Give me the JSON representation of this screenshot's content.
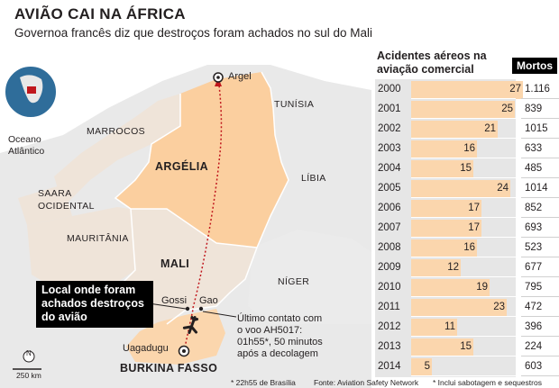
{
  "header": {
    "title": "AVIÃO CAI NA ÁFRICA",
    "subtitle": "Governoa francês diz que destroços foram achados no sul do Mali"
  },
  "map": {
    "labels": {
      "ocean": "Oceano\nAtlântico",
      "marrocos": "MARROCOS",
      "tunisia": "TUNÍSIA",
      "argelia": "ARGÉLIA",
      "libia": "LÍBIA",
      "saara": "SAARA\nOCIDENTAL",
      "mauritania": "MAURITÂNIA",
      "mali": "MALI",
      "niger": "NÍGER",
      "burkina": "BURKINA FASSO"
    },
    "cities": {
      "argel": "Argel",
      "gao": "Gao",
      "gossi": "Gossi",
      "uagadugu": "Uagadugu"
    },
    "callout": "Local onde foram achados destroços do avião",
    "last_contact": "Último contato com o voo AH5017: 01h55*, 50 minutos após a decolagem",
    "scale": "250 km",
    "north": "N",
    "colors": {
      "highlight": "#fbcf9f",
      "neighbor": "#efe4d9",
      "other": "#e8e8e8",
      "route": "#c0171d"
    }
  },
  "table": {
    "title": "Acidentes aéreos na aviação comercial",
    "deaths_header": "Mortos",
    "rows": [
      {
        "year": "2000",
        "accidents": 27,
        "deaths": "1.116"
      },
      {
        "year": "2001",
        "accidents": 25,
        "deaths": "839"
      },
      {
        "year": "2002",
        "accidents": 21,
        "deaths": "1015"
      },
      {
        "year": "2003",
        "accidents": 16,
        "deaths": "633"
      },
      {
        "year": "2004",
        "accidents": 15,
        "deaths": "485"
      },
      {
        "year": "2005",
        "accidents": 24,
        "deaths": "1014"
      },
      {
        "year": "2006",
        "accidents": 17,
        "deaths": "852"
      },
      {
        "year": "2007",
        "accidents": 17,
        "deaths": "693"
      },
      {
        "year": "2008",
        "accidents": 16,
        "deaths": "523"
      },
      {
        "year": "2009",
        "accidents": 12,
        "deaths": "677"
      },
      {
        "year": "2010",
        "accidents": 19,
        "deaths": "795"
      },
      {
        "year": "2011",
        "accidents": 23,
        "deaths": "472"
      },
      {
        "year": "2012",
        "accidents": 11,
        "deaths": "396"
      },
      {
        "year": "2013",
        "accidents": 15,
        "deaths": "224"
      },
      {
        "year": "2014",
        "accidents": 5,
        "deaths": "603"
      }
    ]
  },
  "footnotes": {
    "time": "* 22h55 de Brasília",
    "source": "Fonte: Aviation Safety Network",
    "note": "* Inclui sabotagem e sequestros"
  },
  "chart_data": {
    "type": "bar",
    "title": "Acidentes aéreos na aviação comercial",
    "categories": [
      "2000",
      "2001",
      "2002",
      "2003",
      "2004",
      "2005",
      "2006",
      "2007",
      "2008",
      "2009",
      "2010",
      "2011",
      "2012",
      "2013",
      "2014"
    ],
    "series": [
      {
        "name": "Acidentes",
        "values": [
          27,
          25,
          21,
          16,
          15,
          24,
          17,
          17,
          16,
          12,
          19,
          23,
          11,
          15,
          5
        ]
      },
      {
        "name": "Mortos",
        "values": [
          1116,
          839,
          1015,
          633,
          485,
          1014,
          852,
          693,
          523,
          677,
          795,
          472,
          396,
          224,
          603
        ]
      }
    ]
  }
}
